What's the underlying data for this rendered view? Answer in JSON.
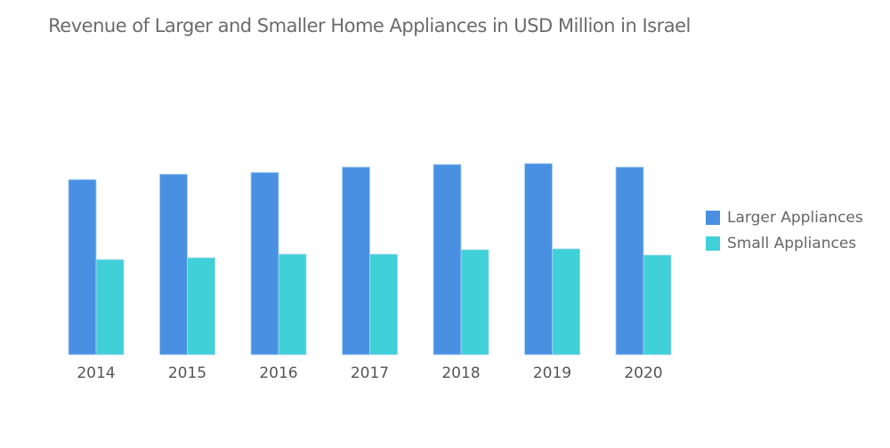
{
  "chart_data": {
    "type": "bar",
    "title": "Revenue of Larger and Smaller Home Appliances in USD Million in Israel",
    "categories": [
      "2014",
      "2015",
      "2016",
      "2017",
      "2018",
      "2019",
      "2020"
    ],
    "series": [
      {
        "name": "Larger Appliances",
        "color": "#4a90e2",
        "values": [
          197,
          203,
          205,
          211,
          214,
          215,
          211
        ]
      },
      {
        "name": "Small Appliances",
        "color": "#40d0d8",
        "values": [
          107,
          109,
          113,
          113,
          118,
          119,
          112
        ]
      }
    ],
    "ylim": [
      0,
      230
    ],
    "grid": false,
    "yaxis_visible": false,
    "legend": "right"
  }
}
